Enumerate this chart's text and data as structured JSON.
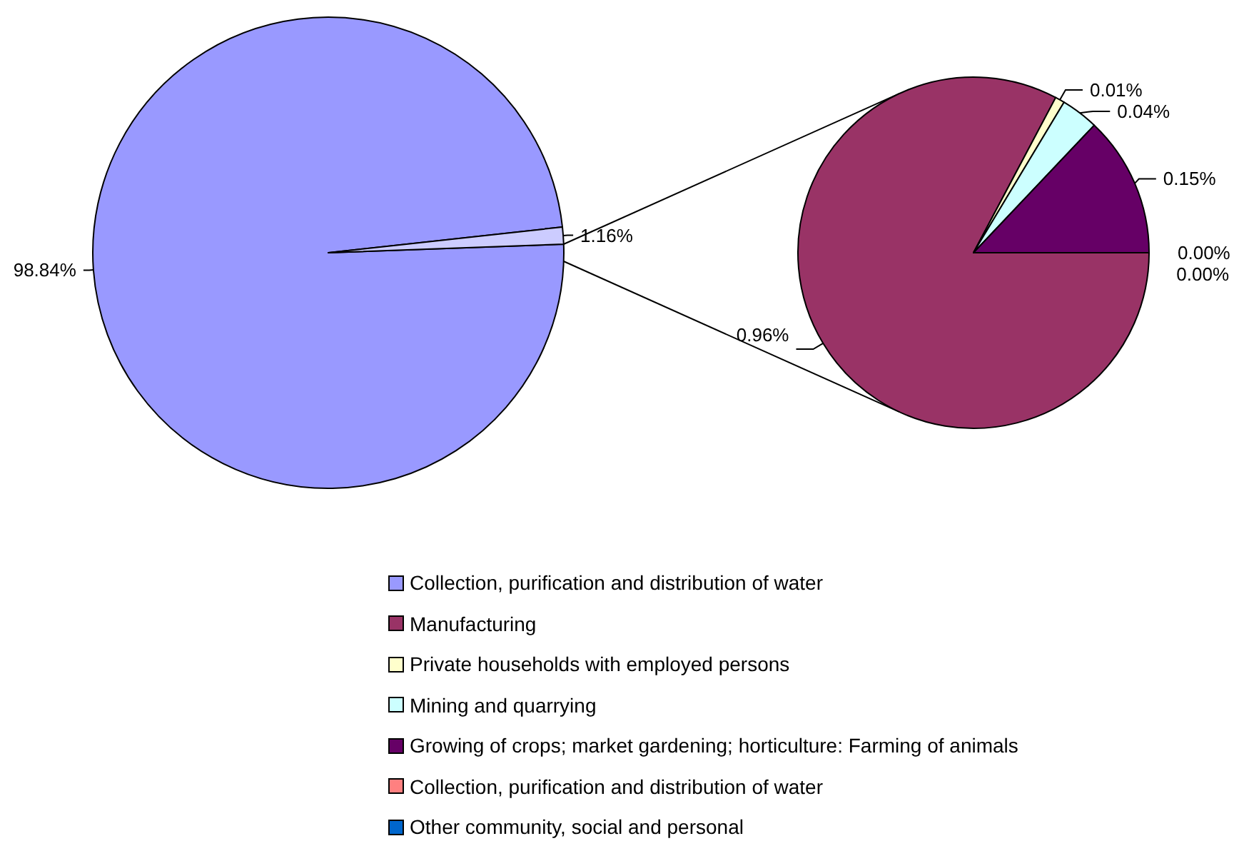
{
  "chart_data": [
    {
      "type": "pie",
      "categories": [
        "Collection, purification and distribution of water",
        null
      ],
      "values": [
        98.84,
        1.16
      ],
      "colors": [
        "#9999ff",
        "#ccccff"
      ],
      "value_labels": [
        "98.84%",
        "1.16%"
      ],
      "legend": "bottom"
    },
    {
      "type": "pie",
      "categories": [
        "Manufacturing",
        "Private households with employed persons",
        "Mining and quarrying",
        "Growing of crops; market gardening; horticulture: Farming of animals",
        "Collection, purification and distribution of water",
        "Other community, social and personal"
      ],
      "values": [
        0.96,
        0.01,
        0.04,
        0.15,
        0.0,
        0.0
      ],
      "colors": [
        "#993366",
        "#ffffcc",
        "#ccffff",
        "#660066",
        "#ff8080",
        "#0066cc"
      ],
      "value_labels": [
        "0.96%",
        "0.01%",
        "0.04%",
        "0.15%",
        "0.00%",
        "0.00%"
      ],
      "legend": "bottom"
    }
  ]
}
